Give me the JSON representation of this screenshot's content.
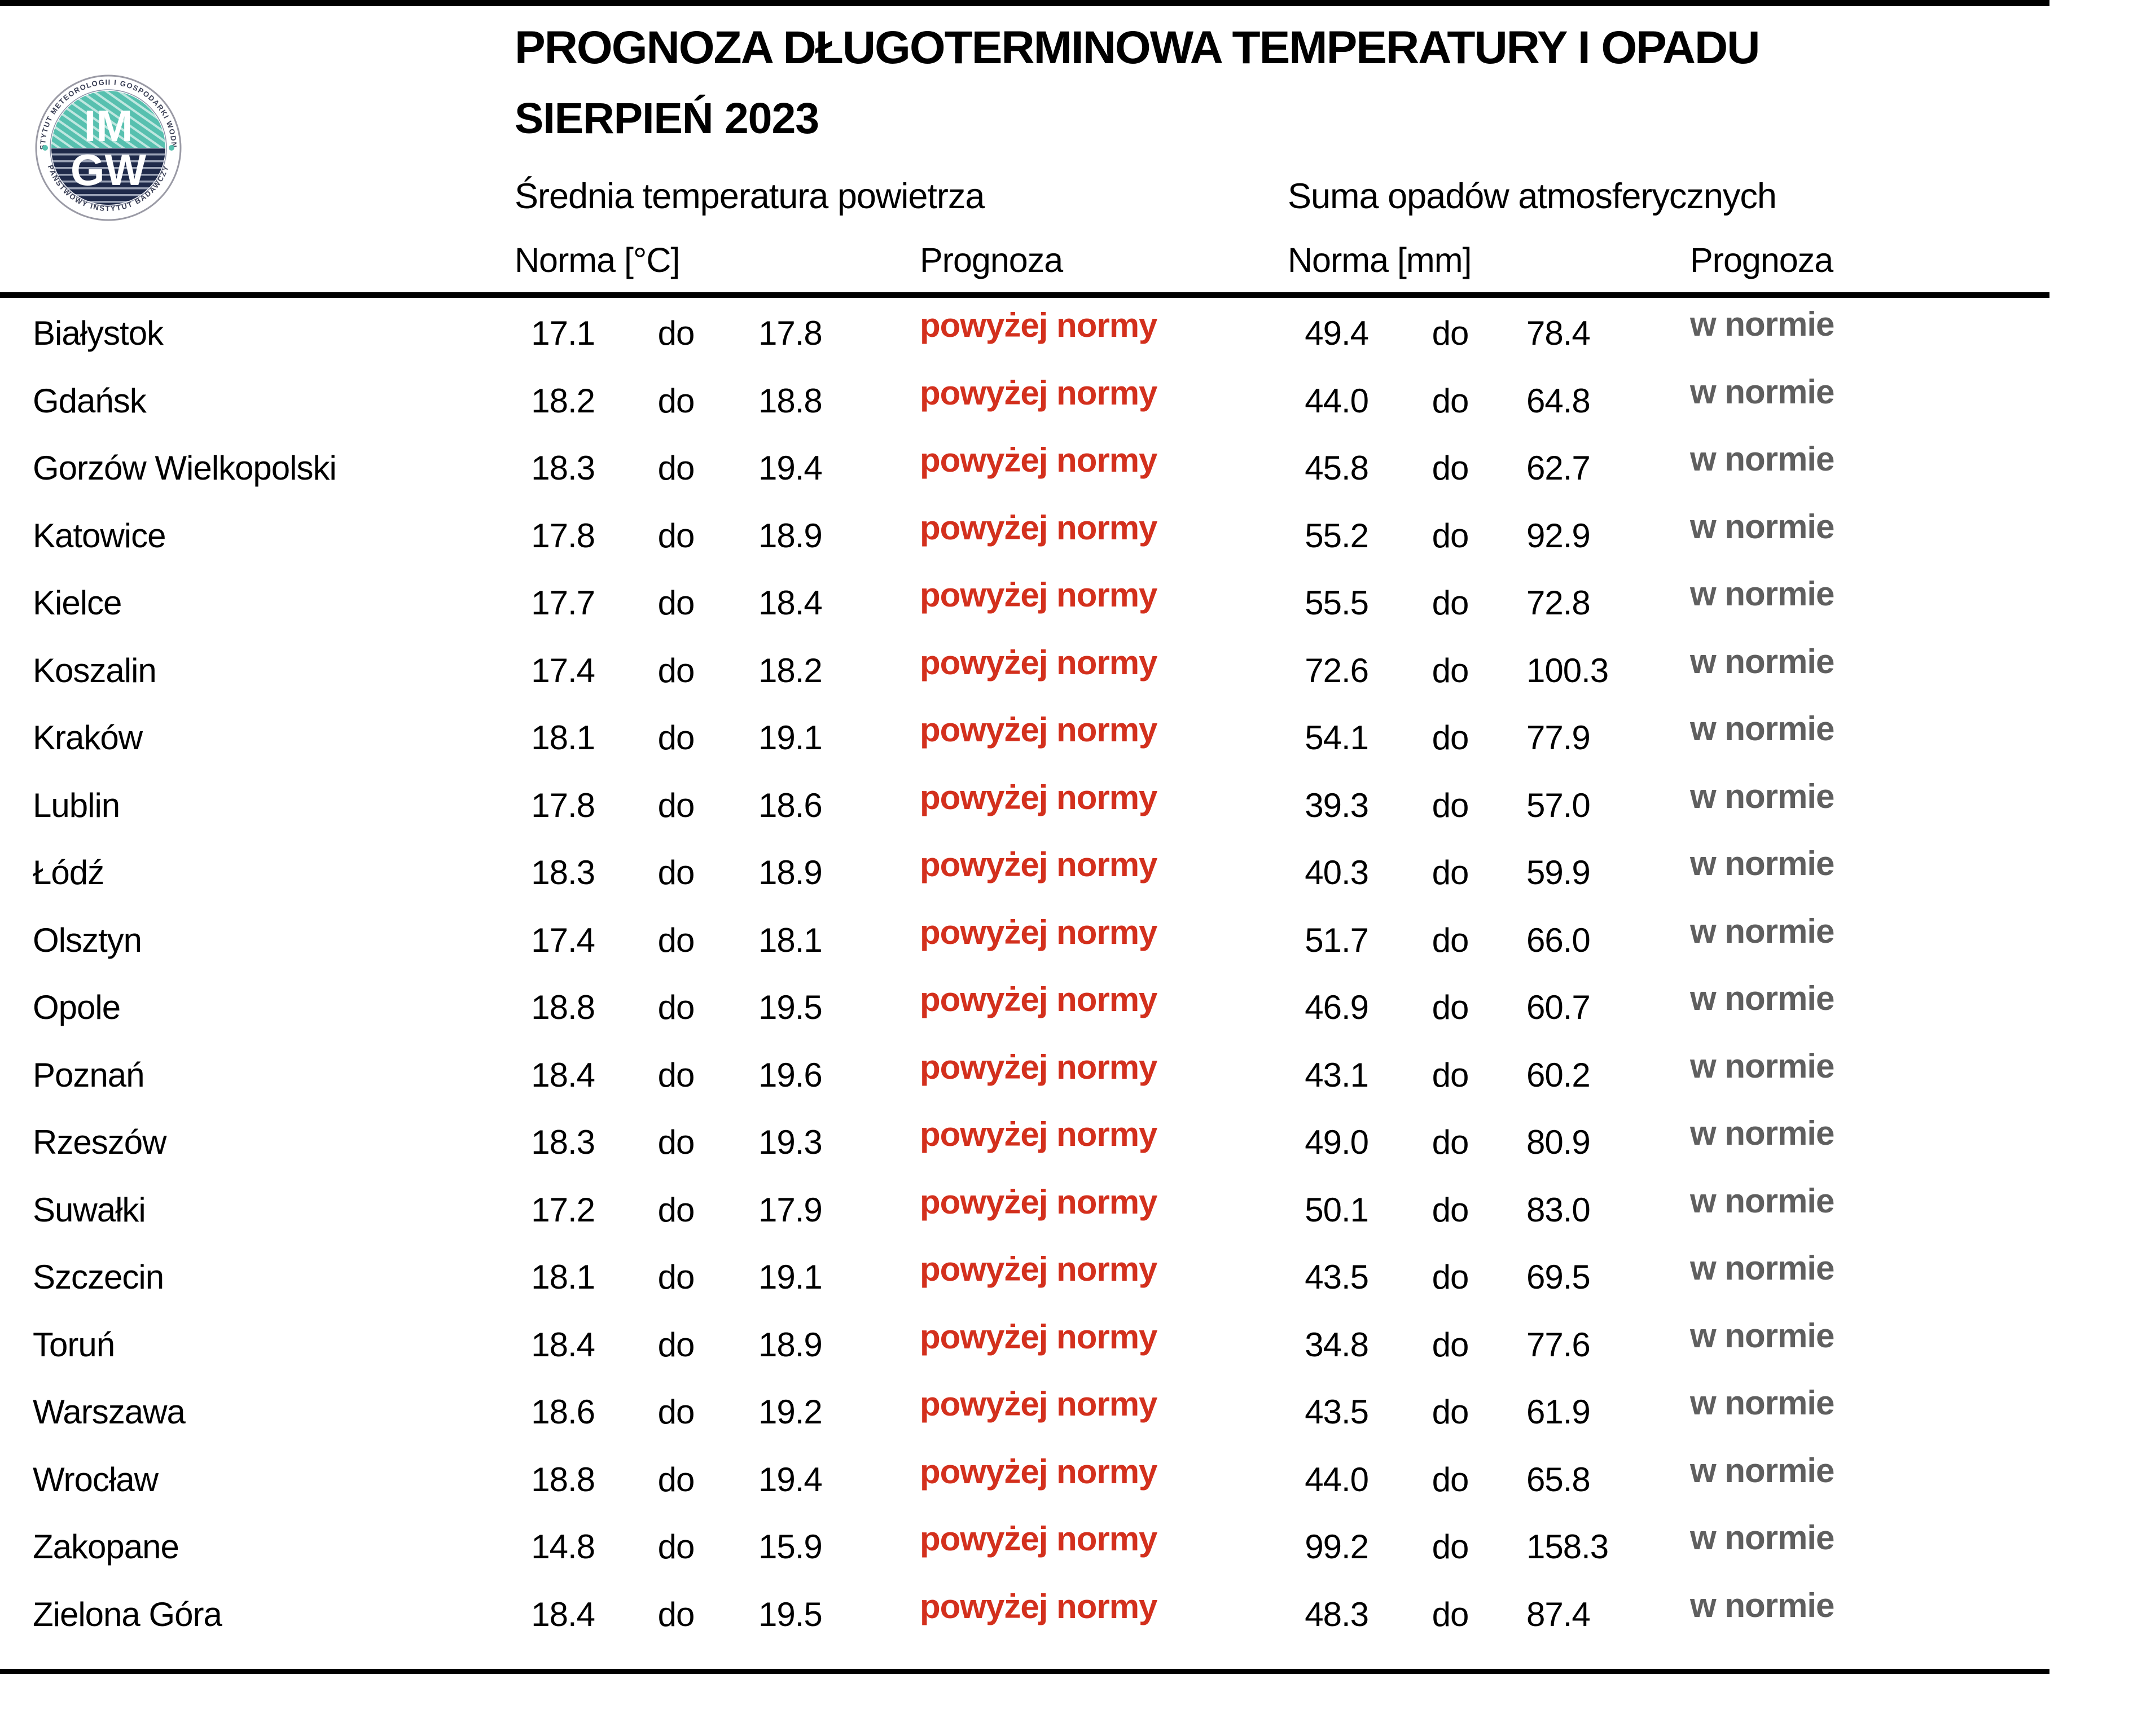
{
  "header": {
    "title": "PROGNOZA DŁUGOTERMINOWA TEMPERATURY I OPADU",
    "month": "SIERPIEŃ 2023",
    "temp_section": "Średnia temperatura powietrza",
    "precip_section": "Suma opadów atmosferycznych",
    "temp_norm_label": "Norma [°C]",
    "temp_forecast_label": "Prognoza",
    "precip_norm_label": "Norma [mm]",
    "precip_forecast_label": "Prognoza"
  },
  "logo": {
    "name": "IMGW logo",
    "top_text": "INSTYTUT METEOROLOGII I GOSPODARKI WODNEJ",
    "bottom_text": "PAŃSTWOWY INSTYTUT BADAWCZY",
    "initials_top": "IM",
    "initials_bottom": "GW",
    "teal": "#57c0af",
    "teal_stripe": "#bfe7e0",
    "navy": "#1f2a4a",
    "navy_stripe": "#9aa2b5"
  },
  "colors": {
    "above_norm_red": "#d3301d",
    "in_norm_gray": "#5f5f5f",
    "text_black": "#000000"
  },
  "table": {
    "range_separator": "do",
    "rows": [
      {
        "city": "Białystok",
        "t_lo": "17.1",
        "t_hi": "17.8",
        "t_prog": "powyżej normy",
        "p_lo": "49.4",
        "p_hi": "78.4",
        "p_prog": "w normie"
      },
      {
        "city": "Gdańsk",
        "t_lo": "18.2",
        "t_hi": "18.8",
        "t_prog": "powyżej normy",
        "p_lo": "44.0",
        "p_hi": "64.8",
        "p_prog": "w normie"
      },
      {
        "city": "Gorzów Wielkopolski",
        "t_lo": "18.3",
        "t_hi": "19.4",
        "t_prog": "powyżej normy",
        "p_lo": "45.8",
        "p_hi": "62.7",
        "p_prog": "w normie"
      },
      {
        "city": "Katowice",
        "t_lo": "17.8",
        "t_hi": "18.9",
        "t_prog": "powyżej normy",
        "p_lo": "55.2",
        "p_hi": "92.9",
        "p_prog": "w normie"
      },
      {
        "city": "Kielce",
        "t_lo": "17.7",
        "t_hi": "18.4",
        "t_prog": "powyżej normy",
        "p_lo": "55.5",
        "p_hi": "72.8",
        "p_prog": "w normie"
      },
      {
        "city": "Koszalin",
        "t_lo": "17.4",
        "t_hi": "18.2",
        "t_prog": "powyżej normy",
        "p_lo": "72.6",
        "p_hi": "100.3",
        "p_prog": "w normie"
      },
      {
        "city": "Kraków",
        "t_lo": "18.1",
        "t_hi": "19.1",
        "t_prog": "powyżej normy",
        "p_lo": "54.1",
        "p_hi": "77.9",
        "p_prog": "w normie"
      },
      {
        "city": "Lublin",
        "t_lo": "17.8",
        "t_hi": "18.6",
        "t_prog": "powyżej normy",
        "p_lo": "39.3",
        "p_hi": "57.0",
        "p_prog": "w normie"
      },
      {
        "city": "Łódź",
        "t_lo": "18.3",
        "t_hi": "18.9",
        "t_prog": "powyżej normy",
        "p_lo": "40.3",
        "p_hi": "59.9",
        "p_prog": "w normie"
      },
      {
        "city": "Olsztyn",
        "t_lo": "17.4",
        "t_hi": "18.1",
        "t_prog": "powyżej normy",
        "p_lo": "51.7",
        "p_hi": "66.0",
        "p_prog": "w normie"
      },
      {
        "city": "Opole",
        "t_lo": "18.8",
        "t_hi": "19.5",
        "t_prog": "powyżej normy",
        "p_lo": "46.9",
        "p_hi": "60.7",
        "p_prog": "w normie"
      },
      {
        "city": "Poznań",
        "t_lo": "18.4",
        "t_hi": "19.6",
        "t_prog": "powyżej normy",
        "p_lo": "43.1",
        "p_hi": "60.2",
        "p_prog": "w normie"
      },
      {
        "city": "Rzeszów",
        "t_lo": "18.3",
        "t_hi": "19.3",
        "t_prog": "powyżej normy",
        "p_lo": "49.0",
        "p_hi": "80.9",
        "p_prog": "w normie"
      },
      {
        "city": "Suwałki",
        "t_lo": "17.2",
        "t_hi": "17.9",
        "t_prog": "powyżej normy",
        "p_lo": "50.1",
        "p_hi": "83.0",
        "p_prog": "w normie"
      },
      {
        "city": "Szczecin",
        "t_lo": "18.1",
        "t_hi": "19.1",
        "t_prog": "powyżej normy",
        "p_lo": "43.5",
        "p_hi": "69.5",
        "p_prog": "w normie"
      },
      {
        "city": "Toruń",
        "t_lo": "18.4",
        "t_hi": "18.9",
        "t_prog": "powyżej normy",
        "p_lo": "34.8",
        "p_hi": "77.6",
        "p_prog": "w normie"
      },
      {
        "city": "Warszawa",
        "t_lo": "18.6",
        "t_hi": "19.2",
        "t_prog": "powyżej normy",
        "p_lo": "43.5",
        "p_hi": "61.9",
        "p_prog": "w normie"
      },
      {
        "city": "Wrocław",
        "t_lo": "18.8",
        "t_hi": "19.4",
        "t_prog": "powyżej normy",
        "p_lo": "44.0",
        "p_hi": "65.8",
        "p_prog": "w normie"
      },
      {
        "city": "Zakopane",
        "t_lo": "14.8",
        "t_hi": "15.9",
        "t_prog": "powyżej normy",
        "p_lo": "99.2",
        "p_hi": "158.3",
        "p_prog": "w normie"
      },
      {
        "city": "Zielona Góra",
        "t_lo": "18.4",
        "t_hi": "19.5",
        "t_prog": "powyżej normy",
        "p_lo": "48.3",
        "p_hi": "87.4",
        "p_prog": "w normie"
      }
    ]
  }
}
